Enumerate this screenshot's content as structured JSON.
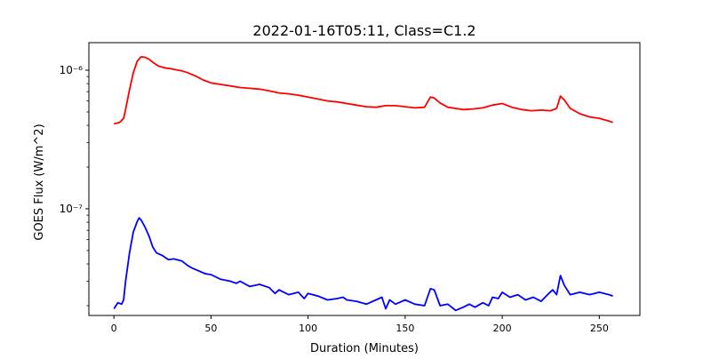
{
  "chart_data": {
    "type": "line",
    "title": "2022-01-16T05:11, Class=C1.2",
    "xlabel": "Duration (Minutes)",
    "ylabel": "GOES Flux (W/m^2)",
    "xlim": [
      -12.9,
      270.9
    ],
    "ylim": [
      1.7e-08,
      1.58e-06
    ],
    "y_scale": "log",
    "x_ticks": [
      0,
      50,
      100,
      150,
      200,
      250
    ],
    "x_tick_labels": [
      "0",
      "50",
      "100",
      "150",
      "200",
      "250"
    ],
    "y_ticks": [
      1e-07,
      1e-06
    ],
    "y_tick_labels": [
      "10⁻⁷",
      "10⁻⁶"
    ],
    "grid": false,
    "legend": "none",
    "series": [
      {
        "color": "#ff0000",
        "x": [
          0,
          3,
          5,
          6,
          8,
          10,
          12,
          14,
          16,
          18,
          20,
          23,
          26,
          30,
          35,
          38,
          42,
          46,
          50,
          55,
          60,
          65,
          70,
          75,
          80,
          85,
          90,
          95,
          100,
          105,
          110,
          115,
          120,
          125,
          130,
          135,
          140,
          145,
          150,
          155,
          160,
          163,
          165,
          168,
          172,
          176,
          180,
          185,
          190,
          195,
          200,
          205,
          210,
          215,
          220,
          225,
          228,
          230,
          232,
          235,
          240,
          245,
          250,
          255,
          257
        ],
        "y": [
          4.1e-07,
          4.2e-07,
          4.5e-07,
          5.2e-07,
          7.2e-07,
          9.6e-07,
          1.16e-06,
          1.25e-06,
          1.24e-06,
          1.2e-06,
          1.14e-06,
          1.07e-06,
          1.04e-06,
          1.02e-06,
          9.9e-07,
          9.6e-07,
          9.1e-07,
          8.5e-07,
          8.1e-07,
          7.9e-07,
          7.7e-07,
          7.5e-07,
          7.4e-07,
          7.3e-07,
          7.1e-07,
          6.85e-07,
          6.75e-07,
          6.6e-07,
          6.4e-07,
          6.2e-07,
          6e-07,
          5.9e-07,
          5.75e-07,
          5.6e-07,
          5.45e-07,
          5.4e-07,
          5.55e-07,
          5.55e-07,
          5.45e-07,
          5.35e-07,
          5.4e-07,
          6.4e-07,
          6.3e-07,
          5.8e-07,
          5.4e-07,
          5.3e-07,
          5.2e-07,
          5.25e-07,
          5.35e-07,
          5.6e-07,
          5.75e-07,
          5.4e-07,
          5.2e-07,
          5.1e-07,
          5.15e-07,
          5.1e-07,
          5.3e-07,
          6.5e-07,
          6.1e-07,
          5.3e-07,
          4.85e-07,
          4.6e-07,
          4.5e-07,
          4.3e-07,
          4.2e-07
        ]
      },
      {
        "color": "#0000ff",
        "x": [
          0,
          2,
          4,
          5,
          6,
          8,
          10,
          12,
          13,
          14,
          16,
          18,
          20,
          22,
          25,
          28,
          31,
          35,
          38,
          40,
          43,
          47,
          50,
          55,
          60,
          63,
          65,
          70,
          75,
          80,
          83,
          85,
          90,
          95,
          98,
          100,
          105,
          110,
          115,
          118,
          120,
          125,
          130,
          135,
          138,
          140,
          142,
          145,
          150,
          155,
          160,
          163,
          165,
          168,
          172,
          176,
          180,
          183,
          186,
          190,
          193,
          195,
          198,
          200,
          204,
          208,
          212,
          216,
          220,
          224,
          226,
          228,
          230,
          232,
          235,
          240,
          245,
          250,
          255,
          257
        ],
        "y": [
          1.9e-08,
          2.1e-08,
          2.05e-08,
          2.2e-08,
          3e-08,
          4.8e-08,
          6.8e-08,
          8.1e-08,
          8.6e-08,
          8.3e-08,
          7.4e-08,
          6.4e-08,
          5.3e-08,
          4.8e-08,
          4.6e-08,
          4.3e-08,
          4.35e-08,
          4.2e-08,
          3.9e-08,
          3.75e-08,
          3.6e-08,
          3.4e-08,
          3.35e-08,
          3.1e-08,
          3e-08,
          2.9e-08,
          3e-08,
          2.75e-08,
          2.85e-08,
          2.7e-08,
          2.45e-08,
          2.6e-08,
          2.4e-08,
          2.5e-08,
          2.25e-08,
          2.45e-08,
          2.35e-08,
          2.2e-08,
          2.25e-08,
          2.3e-08,
          2.2e-08,
          2.15e-08,
          2.05e-08,
          2.2e-08,
          2.3e-08,
          1.9e-08,
          2.2e-08,
          2.05e-08,
          2.2e-08,
          2.05e-08,
          2e-08,
          2.65e-08,
          2.6e-08,
          2e-08,
          2.05e-08,
          1.85e-08,
          1.95e-08,
          2.05e-08,
          1.95e-08,
          2.1e-08,
          2e-08,
          2.3e-08,
          2.25e-08,
          2.5e-08,
          2.3e-08,
          2.4e-08,
          2.2e-08,
          2.3e-08,
          2.15e-08,
          2.45e-08,
          2.6e-08,
          2.4e-08,
          3.3e-08,
          2.8e-08,
          2.4e-08,
          2.5e-08,
          2.4e-08,
          2.5e-08,
          2.4e-08,
          2.35e-08
        ]
      }
    ]
  }
}
